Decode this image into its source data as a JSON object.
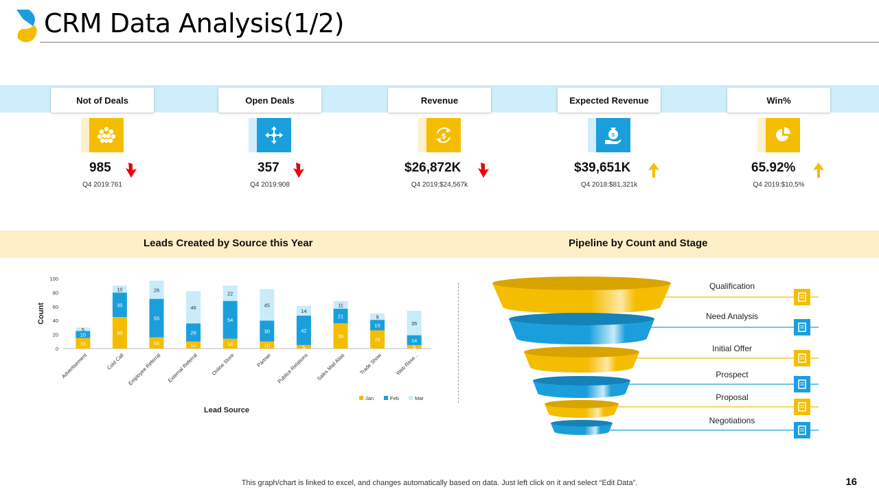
{
  "header": {
    "title": "CRM Data Analysis(1/2)"
  },
  "kpis": [
    {
      "label": "Not of Deals",
      "value": "985",
      "compare": "Q4 2019:761",
      "trend": "down",
      "icon": "network-icon",
      "color": "#f5bd00",
      "pale": "#fdf0cc"
    },
    {
      "label": "Open Deals",
      "value": "357",
      "compare": "Q4 2019:908",
      "trend": "down",
      "icon": "arrows-icon",
      "color": "#1a9fdc",
      "pale": "#d3eefa"
    },
    {
      "label": "Revenue",
      "value": "$26,872K",
      "compare": "Q4 2019:$24,567k",
      "trend": "down",
      "icon": "dollar-cycle-icon",
      "color": "#f5bd00",
      "pale": "#fdf0cc"
    },
    {
      "label": "Expected Revenue",
      "value": "$39,651K",
      "compare": "Q4 2018:$81,321k",
      "trend": "up",
      "icon": "money-hand-icon",
      "color": "#1a9fdc",
      "pale": "#d3eefa"
    },
    {
      "label": "Win%",
      "value": "65.92%",
      "compare": "Q4 2019:$10,5%",
      "trend": "up",
      "icon": "pie-icon",
      "color": "#f5bd00",
      "pale": "#fdf0cc"
    }
  ],
  "colors": {
    "accent_yellow": "#f5bd00",
    "accent_blue": "#1a9fdc",
    "light_blue": "#c9ebfa",
    "down": "#e8000b",
    "up": "#f5bd00"
  },
  "sections": {
    "leads_title": "Leads Created by Source this Year",
    "pipeline_title": "Pipeline by Count and Stage"
  },
  "chart_data": {
    "type": "bar",
    "stacked": true,
    "categories": [
      "Advertisement",
      "Cold Call",
      "Employee Referral",
      "External Referral",
      "Online Store",
      "Partner",
      "Publice Relations",
      "Sales Mail Alias",
      "Trade Show",
      "Web Rese..."
    ],
    "series": [
      {
        "name": "Jan",
        "color": "#f5bd00",
        "values": [
          15,
          45,
          16,
          10,
          14,
          10,
          5,
          36,
          26,
          5
        ]
      },
      {
        "name": "Feb",
        "color": "#1a9fdc",
        "values": [
          10,
          35,
          55,
          26,
          54,
          30,
          42,
          21,
          15,
          14
        ]
      },
      {
        "name": "Mar",
        "color": "#c9ebfa",
        "values": [
          5,
          10,
          26,
          46,
          22,
          45,
          14,
          11,
          9,
          35
        ]
      }
    ],
    "ylabel": "Count",
    "xlabel": "Lead Source",
    "yticks": [
      0,
      20,
      40,
      60,
      80,
      100
    ],
    "ylim": [
      0,
      100
    ],
    "legend": "bottom-right"
  },
  "funnel": {
    "stages": [
      {
        "label": "Qualification",
        "icon": "document-icon",
        "color": "#f5bd00"
      },
      {
        "label": "Need Analysis",
        "icon": "search-icon",
        "color": "#1a9fdc"
      },
      {
        "label": "Initial Offer",
        "icon": "chart-icon",
        "color": "#f5bd00"
      },
      {
        "label": "Prospect",
        "icon": "people-icon",
        "color": "#1a9fdc"
      },
      {
        "label": "Proposal",
        "icon": "handshake-icon",
        "color": "#f5bd00"
      },
      {
        "label": "Negotiations",
        "icon": "meeting-icon",
        "color": "#1a9fdc"
      }
    ]
  },
  "footer": {
    "note": "This graph/chart is linked to excel, and changes automatically based on data. Just left click on it and select “Edit Data”.",
    "page": "16"
  }
}
